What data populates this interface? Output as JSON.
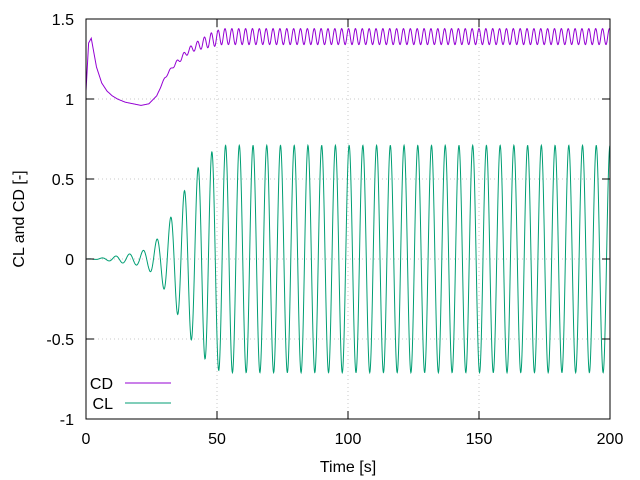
{
  "chart_data": {
    "type": "line",
    "xlabel": "Time [s]",
    "ylabel": "CL and CD [-]",
    "xlim": [
      0,
      200
    ],
    "ylim": [
      -1,
      1.5
    ],
    "x_ticks": [
      0,
      50,
      100,
      150,
      200
    ],
    "y_ticks": [
      -1,
      -0.5,
      0,
      0.5,
      1,
      1.5
    ],
    "x_tick_labels": [
      "0",
      "50",
      "100",
      "150",
      "200"
    ],
    "y_tick_labels": [
      "-1",
      "-0.5",
      "0",
      "0.5",
      "1",
      "1.5"
    ],
    "grid": true,
    "legend_position": "bottom-left",
    "series": [
      {
        "name": "CD",
        "color": "#9400d3",
        "x": [
          0,
          1,
          2,
          4,
          6,
          8,
          10,
          12,
          15,
          18,
          21,
          24,
          27,
          30,
          33,
          36,
          39,
          42,
          45,
          48,
          52,
          200
        ],
        "mean": [
          1.05,
          1.35,
          1.38,
          1.2,
          1.1,
          1.05,
          1.02,
          1.0,
          0.98,
          0.97,
          0.96,
          0.97,
          1.02,
          1.13,
          1.2,
          1.25,
          1.3,
          1.33,
          1.35,
          1.37,
          1.39,
          1.39
        ],
        "amplitude": [
          0,
          0,
          0,
          0,
          0,
          0,
          0,
          0,
          0,
          0,
          0,
          0,
          0,
          0.005,
          0.01,
          0.015,
          0.02,
          0.025,
          0.035,
          0.045,
          0.05,
          0.05
        ],
        "period": 2.62
      },
      {
        "name": "CL",
        "color": "#009e73",
        "x": [
          0,
          4,
          8,
          12,
          16,
          20,
          24,
          28,
          32,
          36,
          40,
          44,
          48,
          52,
          200
        ],
        "mean": [
          0,
          0,
          0,
          0,
          0,
          0,
          0,
          0,
          0,
          0,
          0,
          0,
          0,
          0,
          0
        ],
        "amplitude": [
          0,
          0.003,
          0.01,
          0.02,
          0.03,
          0.04,
          0.07,
          0.14,
          0.25,
          0.38,
          0.5,
          0.6,
          0.67,
          0.71,
          0.71
        ],
        "period": 5.24,
        "phase_deg": 30
      }
    ]
  }
}
